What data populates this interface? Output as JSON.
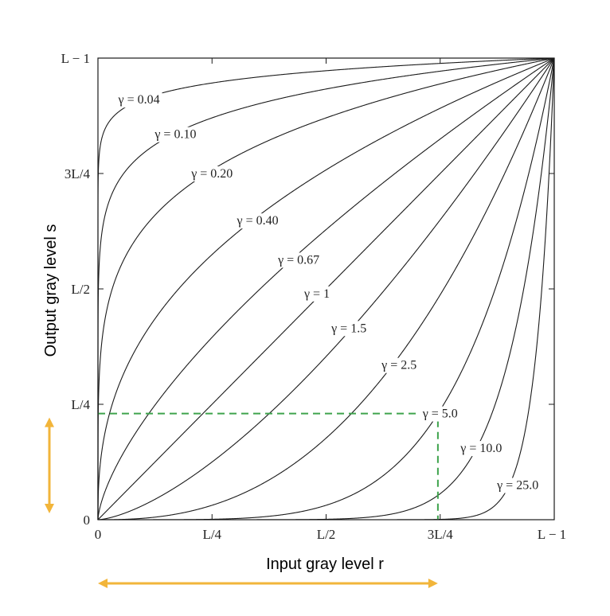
{
  "chart_data": {
    "type": "line",
    "xlabel": "Input gray level r",
    "ylabel": "Output gray level s",
    "xlim": [
      0,
      1
    ],
    "ylim": [
      0,
      1
    ],
    "x_ticks": [
      {
        "value": 0,
        "label": "0"
      },
      {
        "value": 0.25,
        "label": "L/4"
      },
      {
        "value": 0.5,
        "label": "L/2"
      },
      {
        "value": 0.75,
        "label": "3L/4"
      },
      {
        "value": 1,
        "label": "L − 1"
      }
    ],
    "y_ticks": [
      {
        "value": 0,
        "label": "0"
      },
      {
        "value": 0.25,
        "label": "L/4"
      },
      {
        "value": 0.5,
        "label": "L/2"
      },
      {
        "value": 0.75,
        "label": "3L/4"
      },
      {
        "value": 1,
        "label": "L − 1"
      }
    ],
    "series": [
      {
        "gamma": 0.04,
        "label": "γ = 0.04",
        "label_at": [
          0.09,
          0.91
        ]
      },
      {
        "gamma": 0.1,
        "label": "γ = 0.10",
        "label_at": [
          0.17,
          0.835
        ]
      },
      {
        "gamma": 0.2,
        "label": "γ = 0.20",
        "label_at": [
          0.25,
          0.75
        ]
      },
      {
        "gamma": 0.4,
        "label": "γ = 0.40",
        "label_at": [
          0.35,
          0.648
        ]
      },
      {
        "gamma": 0.67,
        "label": "γ = 0.67",
        "label_at": [
          0.44,
          0.563
        ]
      },
      {
        "gamma": 1.0,
        "label": "γ = 1",
        "label_at": [
          0.48,
          0.49
        ]
      },
      {
        "gamma": 1.5,
        "label": "γ = 1.5",
        "label_at": [
          0.55,
          0.415
        ]
      },
      {
        "gamma": 2.5,
        "label": "γ = 2.5",
        "label_at": [
          0.66,
          0.335
        ]
      },
      {
        "gamma": 5.0,
        "label": "γ = 5.0",
        "label_at": [
          0.75,
          0.23
        ]
      },
      {
        "gamma": 10.0,
        "label": "γ = 10.0",
        "label_at": [
          0.84,
          0.155
        ]
      },
      {
        "gamma": 25.0,
        "label": "γ = 25.0",
        "label_at": [
          0.92,
          0.075
        ]
      }
    ],
    "annotations": {
      "guide_point": {
        "x": 0.745,
        "y": 0.23,
        "color": "#3fa34d",
        "style": "dashed"
      },
      "arrows": {
        "color": "#f2b53a"
      }
    },
    "grid": false
  }
}
